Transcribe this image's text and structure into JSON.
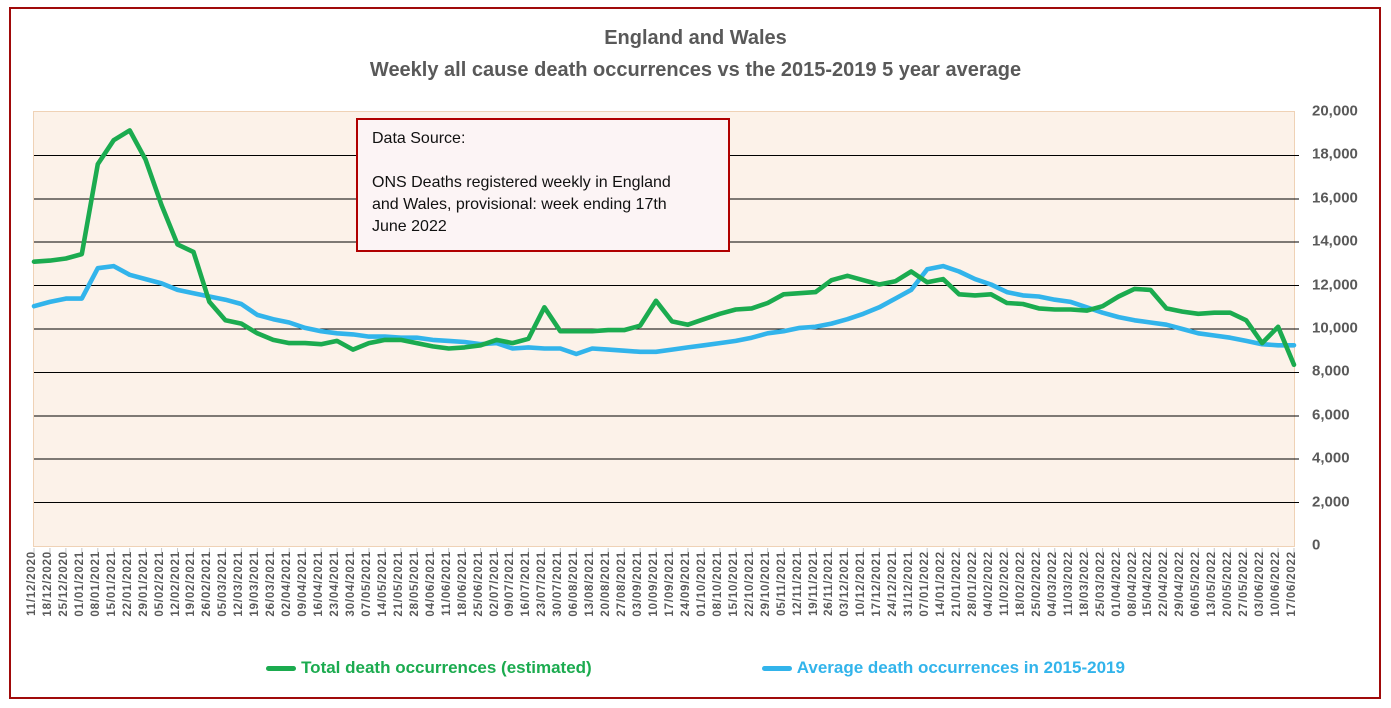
{
  "title": {
    "line1": "England and Wales",
    "line2": "Weekly all cause death occurrences vs the 2015-2019 5 year average"
  },
  "data_source_box": {
    "heading": "Data Source:",
    "body": "ONS Deaths registered weekly in England and Wales, provisional: week ending 17th June 2022"
  },
  "legend": [
    {
      "label": "Total death occurrences (estimated)",
      "color": "#1BAB4F"
    },
    {
      "label": "Average death occurrences in 2015-2019",
      "color": "#32B4EB"
    }
  ],
  "colors": {
    "frame_border": "#A00A0A",
    "plot_background": "#FCF2E9",
    "gridline": "#000000",
    "axis_text": "#595959",
    "source_box_border": "#B00000"
  },
  "chart_data": {
    "type": "line",
    "title": "England and Wales - Weekly all cause death occurrences vs the 2015-2019 5 year average",
    "xlabel": "",
    "ylabel": "",
    "ylim": [
      0,
      20000
    ],
    "ytick_interval": 2000,
    "ytick_labels": [
      "0",
      "2,000",
      "4,000",
      "6,000",
      "8,000",
      "10,000",
      "12,000",
      "14,000",
      "16,000",
      "18,000",
      "20,000"
    ],
    "grid": "horizontal",
    "legend_position": "bottom",
    "x": [
      "11/12/2020",
      "18/12/2020",
      "25/12/2020",
      "01/01/2021",
      "08/01/2021",
      "15/01/2021",
      "22/01/2021",
      "29/01/2021",
      "05/02/2021",
      "12/02/2021",
      "19/02/2021",
      "26/02/2021",
      "05/03/2021",
      "12/03/2021",
      "19/03/2021",
      "26/03/2021",
      "02/04/2021",
      "09/04/2021",
      "16/04/2021",
      "23/04/2021",
      "30/04/2021",
      "07/05/2021",
      "14/05/2021",
      "21/05/2021",
      "28/05/2021",
      "04/06/2021",
      "11/06/2021",
      "18/06/2021",
      "25/06/2021",
      "02/07/2021",
      "09/07/2021",
      "16/07/2021",
      "23/07/2021",
      "30/07/2021",
      "06/08/2021",
      "13/08/2021",
      "20/08/2021",
      "27/08/2021",
      "03/09/2021",
      "10/09/2021",
      "17/09/2021",
      "24/09/2021",
      "01/10/2021",
      "08/10/2021",
      "15/10/2021",
      "22/10/2021",
      "29/10/2021",
      "05/11/2021",
      "12/11/2021",
      "19/11/2021",
      "26/11/2021",
      "03/12/2021",
      "10/12/2021",
      "17/12/2021",
      "24/12/2021",
      "31/12/2021",
      "07/01/2022",
      "14/01/2022",
      "21/01/2022",
      "28/01/2022",
      "04/02/2022",
      "11/02/2022",
      "18/02/2022",
      "25/02/2022",
      "04/03/2022",
      "11/03/2022",
      "18/03/2022",
      "25/03/2022",
      "01/04/2022",
      "08/04/2022",
      "15/04/2022",
      "22/04/2022",
      "29/04/2022",
      "06/05/2022",
      "13/05/2022",
      "20/05/2022",
      "27/05/2022",
      "03/06/2022",
      "10/06/2022",
      "17/06/2022"
    ],
    "series": [
      {
        "name": "Total death occurrences (estimated)",
        "color": "#1BAB4F",
        "values": [
          13100,
          13150,
          13250,
          13450,
          17600,
          18700,
          19150,
          17800,
          15700,
          13900,
          13550,
          11250,
          10400,
          10250,
          9800,
          9500,
          9350,
          9350,
          9300,
          9450,
          9050,
          9350,
          9500,
          9500,
          9350,
          9200,
          9100,
          9150,
          9250,
          9500,
          9350,
          9550,
          11000,
          9900,
          9900,
          9900,
          9950,
          9950,
          10150,
          11300,
          10350,
          10200,
          10450,
          10700,
          10900,
          10950,
          11200,
          11600,
          11650,
          11700,
          12250,
          12450,
          12250,
          12050,
          12200,
          12650,
          12150,
          12300,
          11600,
          11550,
          11600,
          11200,
          11150,
          10950,
          10900,
          10900,
          10850,
          11050,
          11500,
          11850,
          11800,
          10950,
          10800,
          10700,
          10750,
          10750,
          10400,
          9350,
          10100,
          8350
        ]
      },
      {
        "name": "Average death occurrences in 2015-2019",
        "color": "#32B4EB",
        "values": [
          11050,
          11250,
          11400,
          11400,
          12800,
          12900,
          12500,
          12300,
          12100,
          11800,
          11650,
          11500,
          11350,
          11150,
          10650,
          10450,
          10300,
          10050,
          9900,
          9800,
          9750,
          9650,
          9650,
          9600,
          9600,
          9500,
          9450,
          9400,
          9300,
          9350,
          9100,
          9150,
          9100,
          9100,
          8850,
          9100,
          9050,
          9000,
          8950,
          8950,
          9050,
          9150,
          9250,
          9350,
          9450,
          9600,
          9800,
          9900,
          10050,
          10100,
          10250,
          10450,
          10700,
          11000,
          11400,
          11800,
          12750,
          12900,
          12650,
          12300,
          12050,
          11700,
          11550,
          11500,
          11350,
          11250,
          11000,
          10750,
          10550,
          10400,
          10300,
          10200,
          10000,
          9800,
          9700,
          9600,
          9450,
          9300,
          9250,
          9250
        ]
      }
    ]
  }
}
